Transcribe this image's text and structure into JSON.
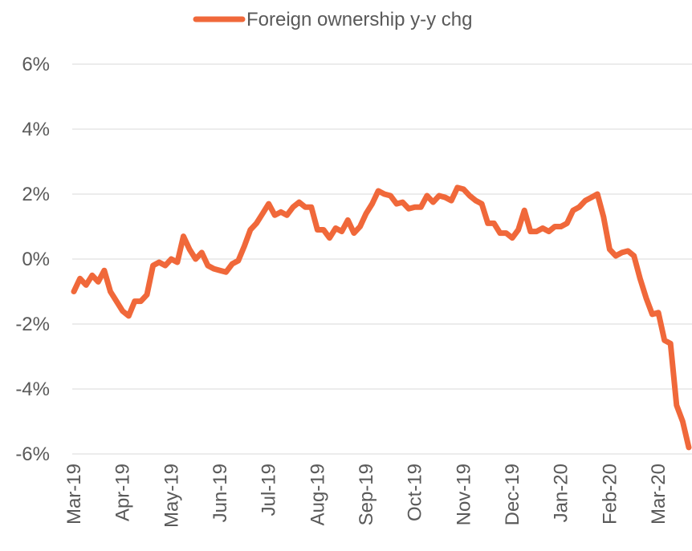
{
  "chart_data": {
    "type": "line",
    "categories": [
      "Mar-19",
      null,
      null,
      null,
      null,
      null,
      null,
      null,
      "Apr-19",
      null,
      null,
      null,
      null,
      null,
      null,
      null,
      "May-19",
      null,
      null,
      null,
      null,
      null,
      null,
      null,
      "Jun-19",
      null,
      null,
      null,
      null,
      null,
      null,
      null,
      "Jul-19",
      null,
      null,
      null,
      null,
      null,
      null,
      null,
      "Aug-19",
      null,
      null,
      null,
      null,
      null,
      null,
      null,
      "Sep-19",
      null,
      null,
      null,
      null,
      null,
      null,
      null,
      "Oct-19",
      null,
      null,
      null,
      null,
      null,
      null,
      null,
      "Nov-19",
      null,
      null,
      null,
      null,
      null,
      null,
      null,
      "Dec-19",
      null,
      null,
      null,
      null,
      null,
      null,
      null,
      "Jan-20",
      null,
      null,
      null,
      null,
      null,
      null,
      null,
      "Feb-20",
      null,
      null,
      null,
      null,
      null,
      null,
      null,
      "Mar-20",
      null,
      null,
      null,
      null,
      null
    ],
    "series": [
      {
        "name": "Foreign ownership y-y chg",
        "color": "#f0683a",
        "values": [
          -1.0,
          -0.6,
          -0.8,
          -0.5,
          -0.7,
          -0.35,
          -1.0,
          -1.3,
          -1.6,
          -1.75,
          -1.3,
          -1.3,
          -1.1,
          -0.2,
          -0.1,
          -0.2,
          0.0,
          -0.1,
          0.7,
          0.3,
          0.0,
          0.2,
          -0.2,
          -0.3,
          -0.35,
          -0.4,
          -0.15,
          -0.05,
          0.4,
          0.9,
          1.1,
          1.4,
          1.7,
          1.35,
          1.45,
          1.35,
          1.6,
          1.75,
          1.6,
          1.6,
          0.9,
          0.9,
          0.65,
          0.95,
          0.85,
          1.2,
          0.8,
          1.0,
          1.4,
          1.7,
          2.1,
          2.0,
          1.95,
          1.7,
          1.75,
          1.55,
          1.6,
          1.6,
          1.95,
          1.75,
          1.95,
          1.9,
          1.8,
          2.2,
          2.15,
          1.95,
          1.8,
          1.7,
          1.1,
          1.1,
          0.8,
          0.8,
          0.65,
          0.9,
          1.5,
          0.85,
          0.85,
          0.95,
          0.85,
          1.0,
          1.0,
          1.1,
          1.5,
          1.6,
          1.8,
          1.9,
          2.0,
          1.3,
          0.3,
          0.1,
          0.2,
          0.25,
          0.1,
          -0.6,
          -1.2,
          -1.7,
          -1.65,
          -2.5,
          -2.6,
          -4.5,
          -5.0,
          -5.8
        ]
      }
    ],
    "ylim": [
      -6,
      6
    ],
    "yticks": [
      {
        "value": -6,
        "label": "-6%"
      },
      {
        "value": -4,
        "label": "-4%"
      },
      {
        "value": -2,
        "label": "-2%"
      },
      {
        "value": 0,
        "label": "0%"
      },
      {
        "value": 2,
        "label": "2%"
      },
      {
        "value": 4,
        "label": "4%"
      },
      {
        "value": 6,
        "label": "6%"
      }
    ],
    "grid": true,
    "legend": "top"
  }
}
